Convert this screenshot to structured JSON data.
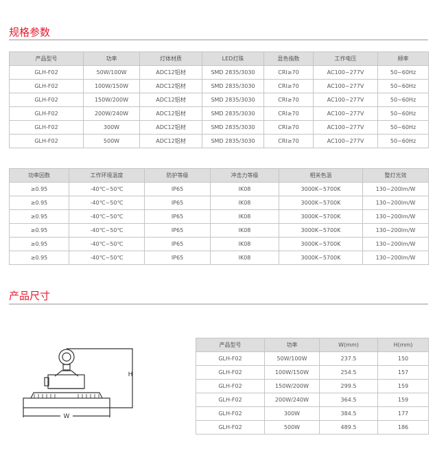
{
  "section1_title": "规格参数",
  "section2_title": "产品尺寸",
  "table1": {
    "headers": [
      "产品型号",
      "功率",
      "灯体材质",
      "LED灯珠",
      "显色指数",
      "工作电压",
      "频率"
    ],
    "rows": [
      [
        "GLH-F02",
        "50W/100W",
        "ADC12铝材",
        "SMD 2835/3030",
        "CRI≥70",
        "AC100~277V",
        "50~60Hz"
      ],
      [
        "GLH-F02",
        "100W/150W",
        "ADC12铝材",
        "SMD 2835/3030",
        "CRI≥70",
        "AC100~277V",
        "50~60Hz"
      ],
      [
        "GLH-F02",
        "150W/200W",
        "ADC12铝材",
        "SMD 2835/3030",
        "CRI≥70",
        "AC100~277V",
        "50~60Hz"
      ],
      [
        "GLH-F02",
        "200W/240W",
        "ADC12铝材",
        "SMD 2835/3030",
        "CRI≥70",
        "AC100~277V",
        "50~60Hz"
      ],
      [
        "GLH-F02",
        "300W",
        "ADC12铝材",
        "SMD 2835/3030",
        "CRI≥70",
        "AC100~277V",
        "50~60Hz"
      ],
      [
        "GLH-F02",
        "500W",
        "ADC12铝材",
        "SMD 2835/3030",
        "CRI≥70",
        "AC100~277V",
        "50~60Hz"
      ]
    ]
  },
  "table2": {
    "headers": [
      "功率因数",
      "工作环境温度",
      "防护等级",
      "冲击力等级",
      "相关色温",
      "整灯光效"
    ],
    "rows": [
      [
        "≥0.95",
        "-40℃~50℃",
        "IP65",
        "IK08",
        "3000K~5700K",
        "130~200lm/W"
      ],
      [
        "≥0.95",
        "-40℃~50℃",
        "IP65",
        "IK08",
        "3000K~5700K",
        "130~200lm/W"
      ],
      [
        "≥0.95",
        "-40℃~50℃",
        "IP65",
        "IK08",
        "3000K~5700K",
        "130~200lm/W"
      ],
      [
        "≥0.95",
        "-40℃~50℃",
        "IP65",
        "IK08",
        "3000K~5700K",
        "130~200lm/W"
      ],
      [
        "≥0.95",
        "-40℃~50℃",
        "IP65",
        "IK08",
        "3000K~5700K",
        "130~200lm/W"
      ],
      [
        "≥0.95",
        "-40℃~50℃",
        "IP65",
        "IK08",
        "3000K~5700K",
        "130~200lm/W"
      ]
    ]
  },
  "table3": {
    "headers": [
      "产品型号",
      "功率",
      "W(mm)",
      "H(mm)"
    ],
    "rows": [
      [
        "GLH-F02",
        "50W/100W",
        "237.5",
        "150"
      ],
      [
        "GLH-F02",
        "100W/150W",
        "254.5",
        "157"
      ],
      [
        "GLH-F02",
        "150W/200W",
        "299.5",
        "159"
      ],
      [
        "GLH-F02",
        "200W/240W",
        "364.5",
        "159"
      ],
      [
        "GLH-F02",
        "300W",
        "384.5",
        "177"
      ],
      [
        "GLH-F02",
        "500W",
        "489.5",
        "186"
      ]
    ]
  },
  "diagram": {
    "h_label": "H",
    "w_label": "W"
  },
  "colors": {
    "accent": "#e8192c",
    "header_bg": "#dedede",
    "border": "#c4c4c4"
  }
}
